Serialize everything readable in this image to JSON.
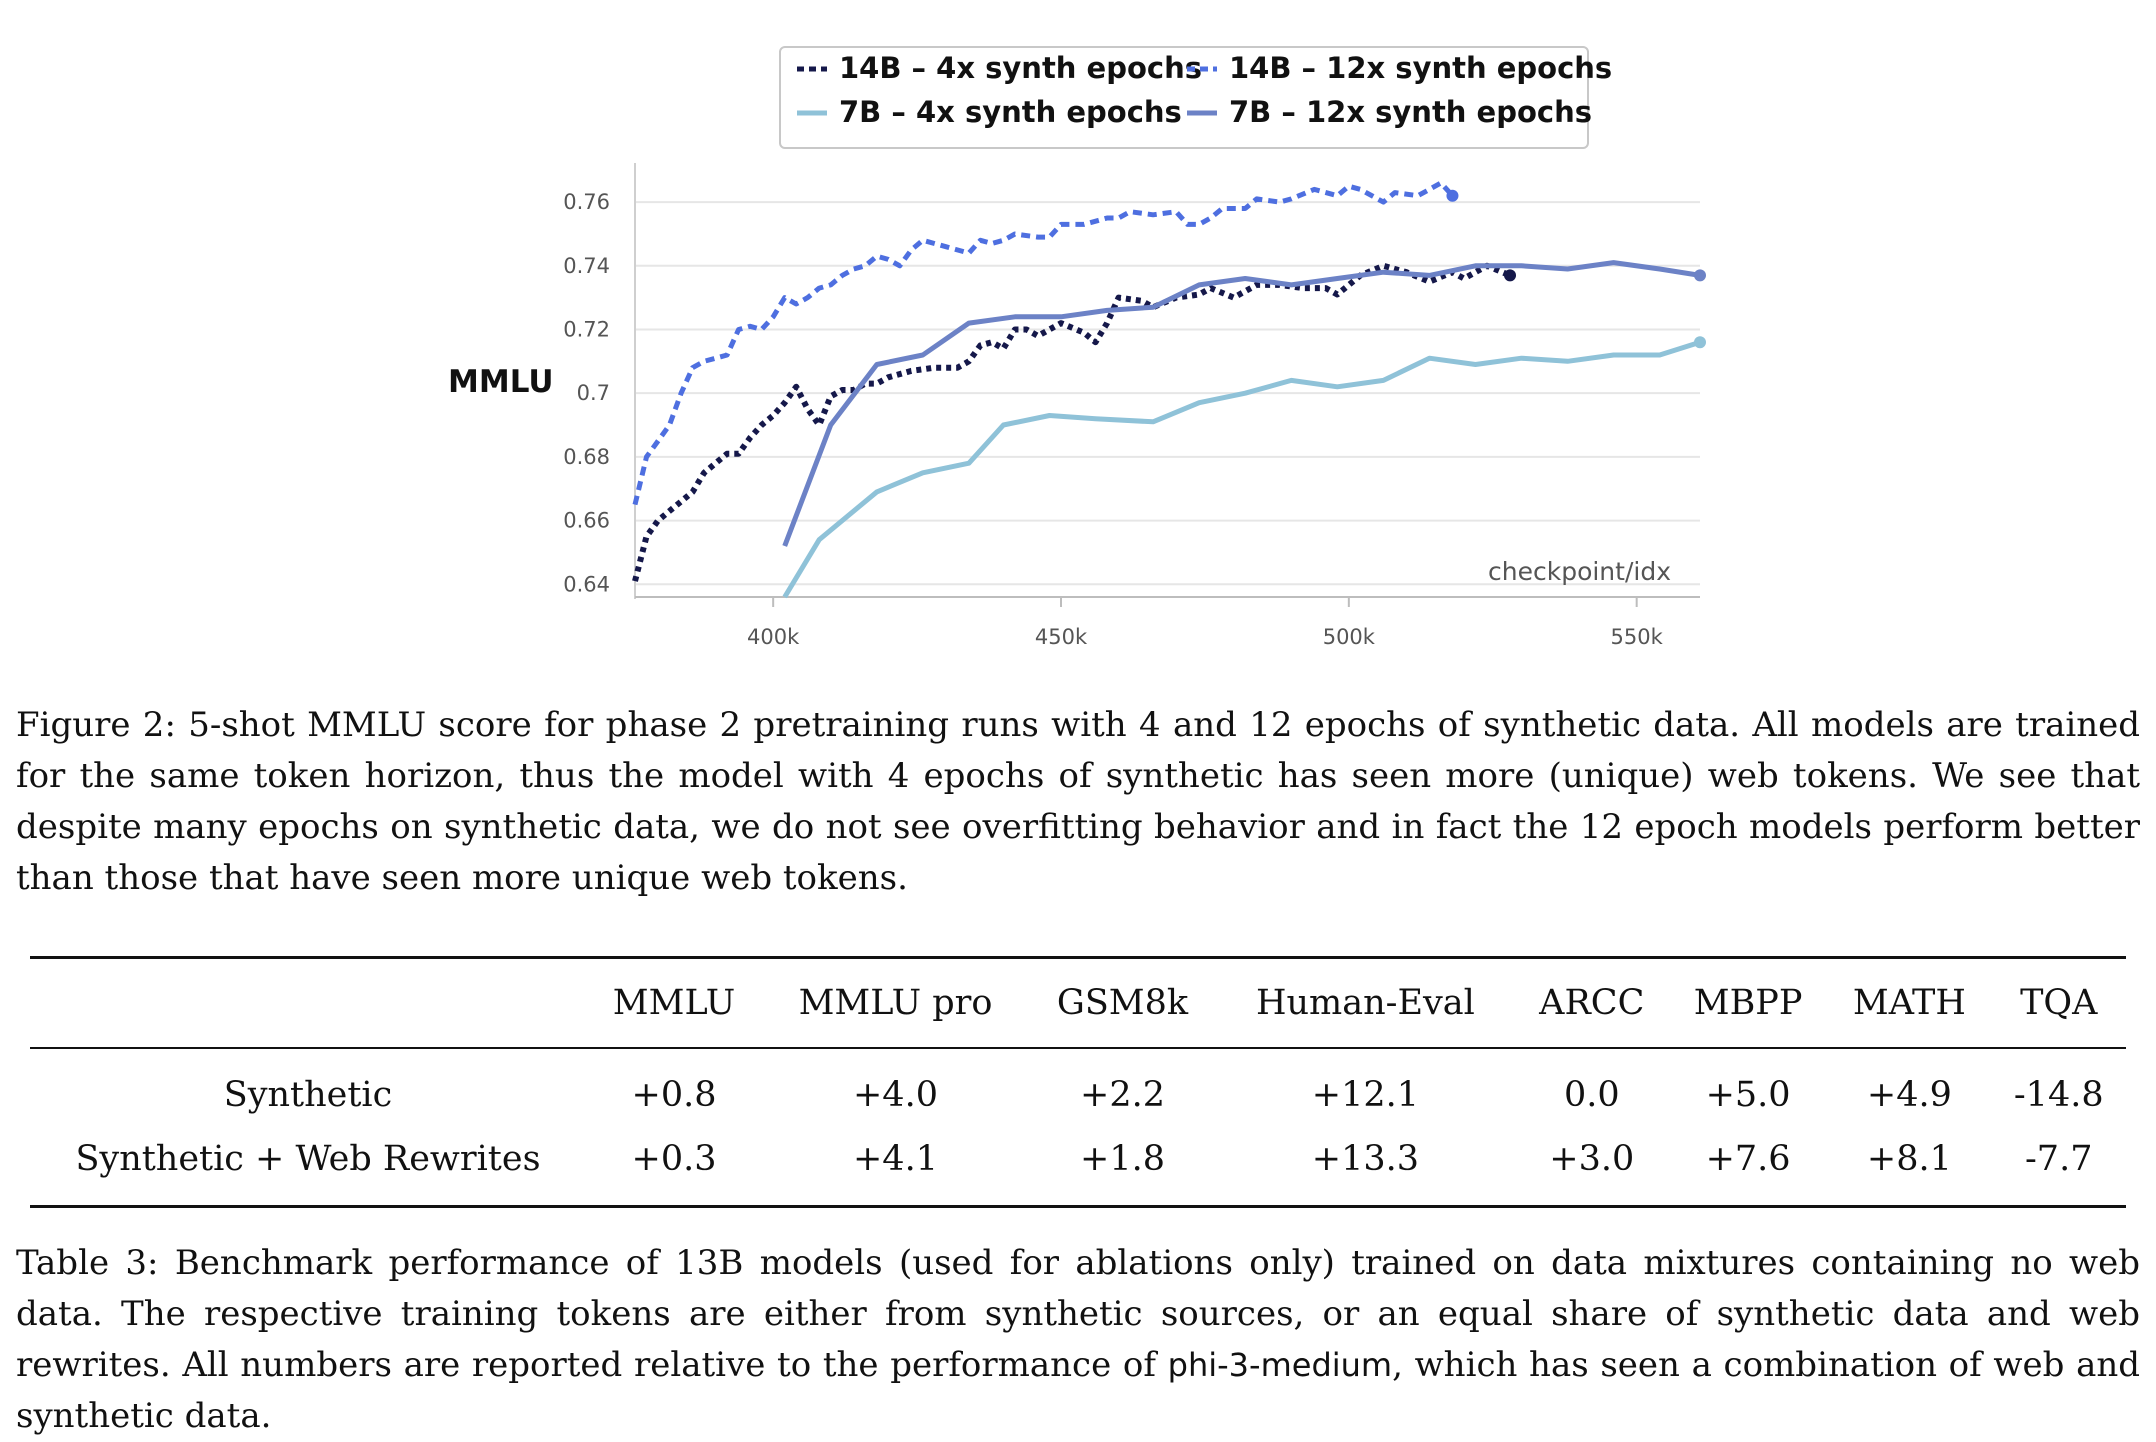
{
  "chart_data": {
    "type": "line",
    "title": "",
    "xlabel": "checkpoint/idx",
    "ylabel": "MMLU",
    "xlim": [
      376000,
      561000
    ],
    "ylim": [
      0.636,
      0.766
    ],
    "x_ticks": [
      400000,
      450000,
      500000,
      550000
    ],
    "x_tick_labels": [
      "400k",
      "450k",
      "500k",
      "550k"
    ],
    "y_ticks": [
      0.64,
      0.66,
      0.68,
      0.7,
      0.72,
      0.74,
      0.76
    ],
    "y_tick_labels": [
      "0.64",
      "0.66",
      "0.68",
      "0.7",
      "0.72",
      "0.74",
      "0.76"
    ],
    "grid": "horizontal",
    "legend_position": "top-center",
    "series": [
      {
        "name": "14B – 4x synth epochs",
        "color": "#15184a",
        "style": "dotted",
        "points": [
          [
            376000,
            0.641
          ],
          [
            378000,
            0.655
          ],
          [
            380000,
            0.66
          ],
          [
            382000,
            0.663
          ],
          [
            384000,
            0.666
          ],
          [
            386000,
            0.669
          ],
          [
            388000,
            0.675
          ],
          [
            390000,
            0.678
          ],
          [
            392000,
            0.681
          ],
          [
            394000,
            0.681
          ],
          [
            396000,
            0.686
          ],
          [
            398000,
            0.69
          ],
          [
            400000,
            0.693
          ],
          [
            402000,
            0.697
          ],
          [
            404000,
            0.702
          ],
          [
            406000,
            0.695
          ],
          [
            408000,
            0.69
          ],
          [
            410000,
            0.699
          ],
          [
            412000,
            0.701
          ],
          [
            414000,
            0.701
          ],
          [
            416000,
            0.703
          ],
          [
            418000,
            0.703
          ],
          [
            420000,
            0.705
          ],
          [
            424000,
            0.707
          ],
          [
            428000,
            0.708
          ],
          [
            432000,
            0.708
          ],
          [
            434000,
            0.71
          ],
          [
            436000,
            0.715
          ],
          [
            438000,
            0.716
          ],
          [
            440000,
            0.714
          ],
          [
            442000,
            0.72
          ],
          [
            444000,
            0.72
          ],
          [
            446000,
            0.718
          ],
          [
            450000,
            0.722
          ],
          [
            454000,
            0.719
          ],
          [
            456000,
            0.716
          ],
          [
            458000,
            0.722
          ],
          [
            460000,
            0.73
          ],
          [
            464000,
            0.729
          ],
          [
            466000,
            0.727
          ],
          [
            470000,
            0.73
          ],
          [
            474000,
            0.731
          ],
          [
            476000,
            0.733
          ],
          [
            480000,
            0.73
          ],
          [
            484000,
            0.734
          ],
          [
            488000,
            0.734
          ],
          [
            492000,
            0.733
          ],
          [
            496000,
            0.733
          ],
          [
            498000,
            0.731
          ],
          [
            502000,
            0.737
          ],
          [
            506000,
            0.74
          ],
          [
            510000,
            0.738
          ],
          [
            514000,
            0.735
          ],
          [
            518000,
            0.738
          ],
          [
            520000,
            0.736
          ],
          [
            524000,
            0.74
          ],
          [
            528000,
            0.737
          ]
        ]
      },
      {
        "name": "14B – 12x synth epochs",
        "color": "#4e6fe0",
        "style": "dashed",
        "points": [
          [
            376000,
            0.665
          ],
          [
            378000,
            0.68
          ],
          [
            380000,
            0.685
          ],
          [
            382000,
            0.69
          ],
          [
            384000,
            0.7
          ],
          [
            386000,
            0.708
          ],
          [
            388000,
            0.71
          ],
          [
            390000,
            0.711
          ],
          [
            392000,
            0.712
          ],
          [
            394000,
            0.72
          ],
          [
            396000,
            0.721
          ],
          [
            398000,
            0.72
          ],
          [
            400000,
            0.724
          ],
          [
            402000,
            0.73
          ],
          [
            404000,
            0.728
          ],
          [
            406000,
            0.73
          ],
          [
            408000,
            0.733
          ],
          [
            410000,
            0.734
          ],
          [
            412000,
            0.737
          ],
          [
            414000,
            0.739
          ],
          [
            416000,
            0.74
          ],
          [
            418000,
            0.743
          ],
          [
            420000,
            0.742
          ],
          [
            422000,
            0.74
          ],
          [
            424000,
            0.745
          ],
          [
            426000,
            0.748
          ],
          [
            428000,
            0.747
          ],
          [
            430000,
            0.746
          ],
          [
            434000,
            0.744
          ],
          [
            436000,
            0.748
          ],
          [
            438000,
            0.747
          ],
          [
            440000,
            0.748
          ],
          [
            442000,
            0.75
          ],
          [
            446000,
            0.749
          ],
          [
            448000,
            0.749
          ],
          [
            450000,
            0.753
          ],
          [
            454000,
            0.753
          ],
          [
            458000,
            0.755
          ],
          [
            460000,
            0.755
          ],
          [
            462000,
            0.757
          ],
          [
            466000,
            0.756
          ],
          [
            470000,
            0.757
          ],
          [
            472000,
            0.753
          ],
          [
            474000,
            0.753
          ],
          [
            476000,
            0.755
          ],
          [
            478000,
            0.758
          ],
          [
            482000,
            0.758
          ],
          [
            484000,
            0.761
          ],
          [
            488000,
            0.76
          ],
          [
            490000,
            0.761
          ],
          [
            494000,
            0.764
          ],
          [
            498000,
            0.762
          ],
          [
            500000,
            0.765
          ],
          [
            502000,
            0.764
          ],
          [
            506000,
            0.76
          ],
          [
            508000,
            0.763
          ],
          [
            512000,
            0.762
          ],
          [
            514000,
            0.764
          ],
          [
            516000,
            0.766
          ],
          [
            518000,
            0.762
          ]
        ]
      },
      {
        "name": "7B – 4x synth epochs",
        "color": "#8fc2d8",
        "style": "solid",
        "points": [
          [
            402000,
            0.636
          ],
          [
            408000,
            0.654
          ],
          [
            418000,
            0.669
          ],
          [
            426000,
            0.675
          ],
          [
            434000,
            0.678
          ],
          [
            440000,
            0.69
          ],
          [
            448000,
            0.693
          ],
          [
            456000,
            0.692
          ],
          [
            466000,
            0.691
          ],
          [
            474000,
            0.697
          ],
          [
            482000,
            0.7
          ],
          [
            490000,
            0.704
          ],
          [
            498000,
            0.702
          ],
          [
            506000,
            0.704
          ],
          [
            514000,
            0.711
          ],
          [
            522000,
            0.709
          ],
          [
            530000,
            0.711
          ],
          [
            538000,
            0.71
          ],
          [
            546000,
            0.712
          ],
          [
            554000,
            0.712
          ],
          [
            561000,
            0.716
          ]
        ]
      },
      {
        "name": "7B – 12x synth epochs",
        "color": "#6c82c6",
        "style": "solid",
        "points": [
          [
            402000,
            0.652
          ],
          [
            410000,
            0.69
          ],
          [
            418000,
            0.709
          ],
          [
            426000,
            0.712
          ],
          [
            434000,
            0.722
          ],
          [
            442000,
            0.724
          ],
          [
            450000,
            0.724
          ],
          [
            458000,
            0.726
          ],
          [
            466000,
            0.727
          ],
          [
            474000,
            0.734
          ],
          [
            482000,
            0.736
          ],
          [
            490000,
            0.734
          ],
          [
            498000,
            0.736
          ],
          [
            506000,
            0.738
          ],
          [
            514000,
            0.737
          ],
          [
            522000,
            0.74
          ],
          [
            530000,
            0.74
          ],
          [
            538000,
            0.739
          ],
          [
            546000,
            0.741
          ],
          [
            554000,
            0.739
          ],
          [
            561000,
            0.737
          ]
        ]
      }
    ]
  },
  "figure_caption": {
    "label": "Figure 2:",
    "text": "5-shot MMLU score for phase 2 pretraining runs with 4 and 12 epochs of synthetic data. All models are trained for the same token horizon, thus the model with 4 epochs of synthetic has seen more (unique) web tokens. We see that despite many epochs on synthetic data, we do not see overfitting behavior and in fact the 12 epoch models perform better than those that have seen more unique web tokens."
  },
  "table": {
    "columns": [
      "",
      "MMLU",
      "MMLU pro",
      "GSM8k",
      "Human-Eval",
      "ARCC",
      "MBPP",
      "MATH",
      "TQA"
    ],
    "rows": [
      {
        "label": "Synthetic",
        "values": [
          "+0.8",
          "+4.0",
          "+2.2",
          "+12.1",
          "0.0",
          "+5.0",
          "+4.9",
          "-14.8"
        ]
      },
      {
        "label": "Synthetic + Web Rewrites",
        "values": [
          "+0.3",
          "+4.1",
          "+1.8",
          "+13.3",
          "+3.0",
          "+7.6",
          "+8.1",
          "-7.7"
        ]
      }
    ]
  },
  "table_caption": {
    "label": "Table 3:",
    "text_before": "Benchmark performance of 13B models (used for ablations only) trained on data mixtures containing no web data. The respective training tokens are either from synthetic sources, or an equal share of synthetic data and web rewrites. All numbers are reported relative to the performance of",
    "model": "phi-3-medium",
    "text_after": ", which has seen a combination of web and synthetic data."
  }
}
